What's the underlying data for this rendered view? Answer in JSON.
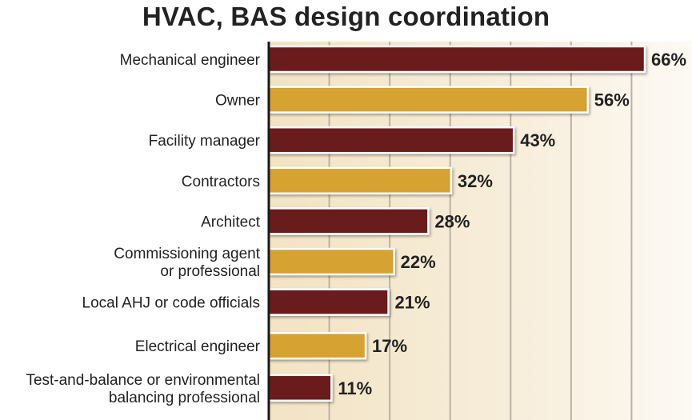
{
  "chart_data": {
    "type": "bar",
    "orientation": "horizontal",
    "title": "HVAC, BAS design coordination",
    "categories": [
      "Mechanical engineer",
      "Owner",
      "Facility manager",
      "Contractors",
      "Architect",
      "Commissioning agent or professional",
      "Local AHJ or code officials",
      "Electrical engineer",
      "Test-and-balance or environmental balancing professional"
    ],
    "category_lines": [
      [
        "Mechanical engineer"
      ],
      [
        "Owner"
      ],
      [
        "Facility manager"
      ],
      [
        "Contractors"
      ],
      [
        "Architect"
      ],
      [
        "Commissioning agent",
        "or professional"
      ],
      [
        "Local AHJ or code officials"
      ],
      [
        "Electrical engineer"
      ],
      [
        "Test-and-balance or environmental",
        "balancing professional"
      ]
    ],
    "values": [
      66,
      56,
      43,
      32,
      28,
      22,
      21,
      17,
      11
    ],
    "value_labels": [
      "66%",
      "56%",
      "43%",
      "32%",
      "28%",
      "22%",
      "21%",
      "17%",
      "11%"
    ],
    "xlim": [
      0,
      70
    ],
    "grid": true,
    "bar_colors": [
      "#6b1a1e",
      "#d6a233"
    ]
  }
}
